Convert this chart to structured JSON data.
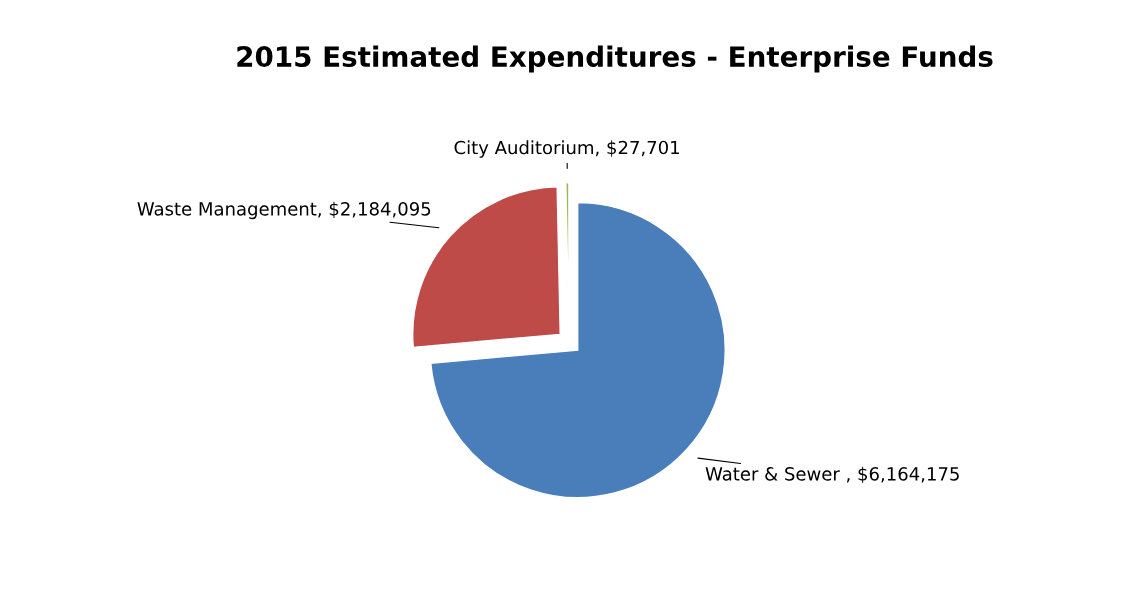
{
  "chart_data": {
    "type": "pie",
    "title": "2015 Estimated Expenditures - Enterprise Funds",
    "categories": [
      "Water & Sewer ",
      "Waste Management",
      "City Auditorium"
    ],
    "values": [
      6164175,
      2184095,
      27701
    ],
    "value_labels": [
      "$6,164,175",
      "$2,184,095",
      "$27,701"
    ],
    "colors": [
      "#4a7ebb",
      "#be4b48",
      "#98b954"
    ],
    "legend": false
  }
}
